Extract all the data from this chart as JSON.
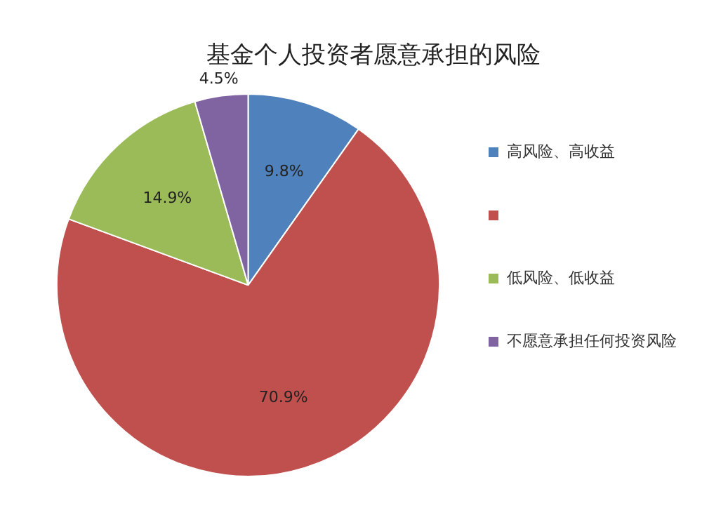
{
  "chart_data": {
    "type": "pie",
    "title": "基金个人投资者愿意承担的风险",
    "categories": [
      "高风险、高收益",
      null,
      "低风险、低收益",
      "不愿意承担任何投资风险"
    ],
    "values": [
      9.8,
      70.9,
      14.9,
      4.5
    ],
    "colors": [
      "#4f81bd",
      "#c0504d",
      "#9bbb59",
      "#8064a2"
    ],
    "value_labels": [
      "9.8%",
      "70.9%",
      "14.9%",
      "4.5%"
    ],
    "legend": "right"
  }
}
